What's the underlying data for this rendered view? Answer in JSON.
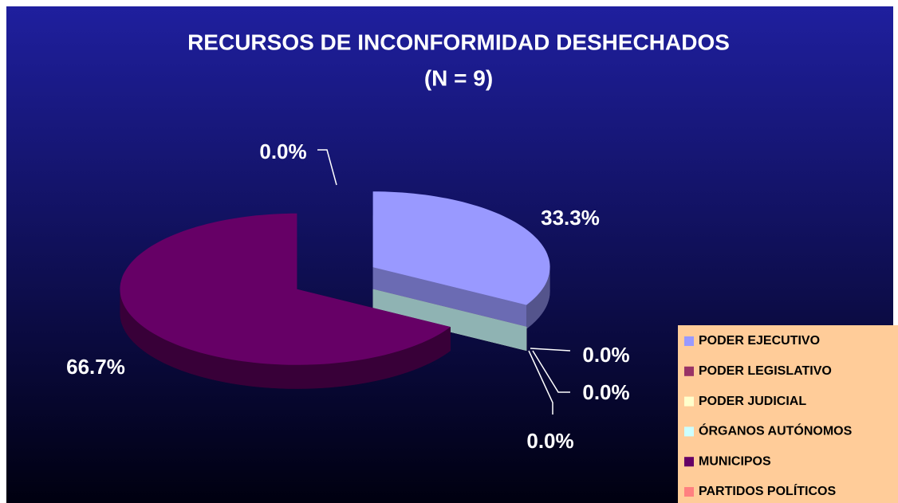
{
  "chart_data": {
    "type": "pie",
    "title": "RECURSOS DE INCONFORMIDAD DESHECHADOS",
    "subtitle": "(N = 9)",
    "categories": [
      "PODER EJECUTIVO",
      "PODER LEGISLATIVO",
      "PODER JUDICIAL",
      "ÓRGANOS AUTÓNOMOS",
      "MUNICIPOS",
      "PARTIDOS POLÍTICOS"
    ],
    "values": [
      33.3,
      0,
      0,
      0,
      66.7,
      0
    ],
    "value_labels": [
      "33.3%",
      "0.0%",
      "0.0%",
      "0.0%",
      "66.7%",
      "0.0%"
    ],
    "colors": [
      "#9999ff",
      "#993366",
      "#ffffcc",
      "#ccffff",
      "#660066",
      "#ff8080"
    ],
    "legend": "lower right"
  }
}
